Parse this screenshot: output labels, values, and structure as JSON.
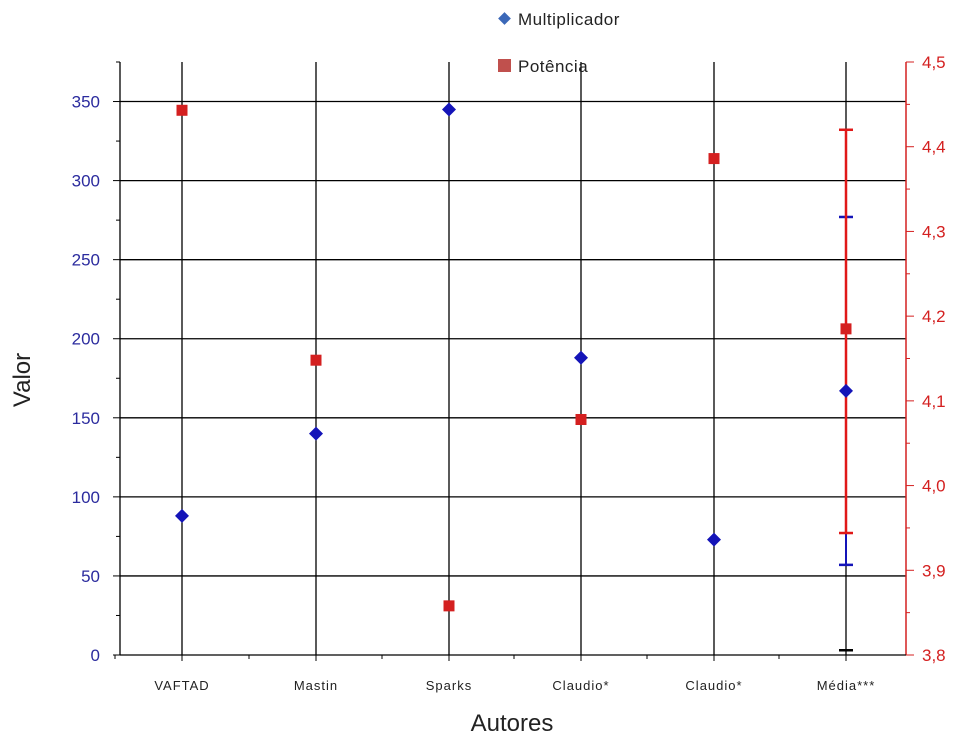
{
  "chart_data": {
    "type": "scatter",
    "categories": [
      "VAFTAD",
      "Mastin",
      "Sparks",
      "Claudio*",
      "Claudio*",
      "Média***"
    ],
    "xlabel": "Autores",
    "ylabel": "Valor",
    "ylim": [
      0,
      375
    ],
    "y_ticks": [
      "0",
      "50",
      "100",
      "150",
      "200",
      "250",
      "300",
      "350"
    ],
    "y2lim": [
      3.8,
      4.5
    ],
    "y2_ticks": [
      "3,8",
      "3,9",
      "4,0",
      "4,1",
      "4,2",
      "4,3",
      "4,4",
      "4,5"
    ],
    "grid": true,
    "legend_position": "top-right",
    "series": [
      {
        "name": "Multiplicador",
        "axis": "left",
        "marker": "diamond",
        "color": "#1414b8",
        "values": [
          88,
          140,
          345,
          188,
          73,
          167
        ],
        "error_bar": {
          "index": 5,
          "low": 57,
          "high": 277,
          "color": "#1414b8"
        }
      },
      {
        "name": "Potência",
        "axis": "right",
        "marker": "square",
        "color": "#d42020",
        "values": [
          4.443,
          4.148,
          3.858,
          4.078,
          4.386,
          4.185
        ],
        "error_bar": {
          "index": 5,
          "low": 3.944,
          "high": 4.42,
          "color": "#e01818"
        }
      }
    ],
    "annotations": [
      {
        "category_index": 5,
        "axis": "left",
        "value": 3,
        "marker": "dash",
        "color": "#000000"
      }
    ]
  }
}
